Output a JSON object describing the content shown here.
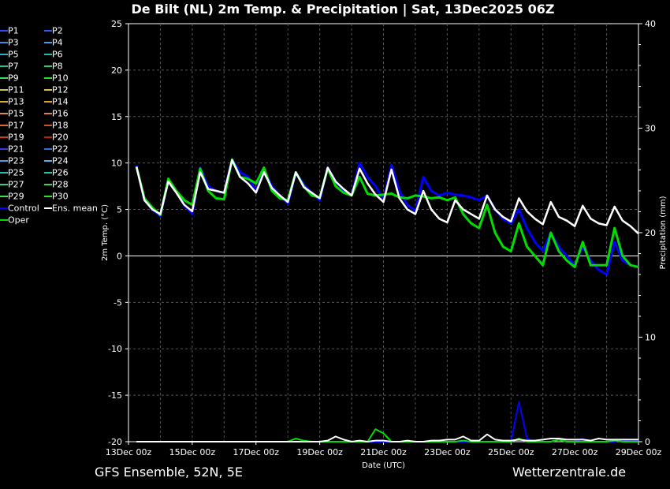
{
  "header": {
    "title": "De Bilt  (NL)  2m Temp. & Precipitation | Sat, 13Dec2025 06Z"
  },
  "footer": {
    "left": "GFS Ensemble, 52N, 5E",
    "right": "Wetterzentrale.de"
  },
  "colors": {
    "background": "#000000",
    "grid": "#555555",
    "control": "#0000ff",
    "ens_mean": "#ffffff",
    "oper": "#00dd00"
  },
  "legend": {
    "items": [
      {
        "label": "P1",
        "color": "#2a4cff"
      },
      {
        "label": "P2",
        "color": "#2a5cff"
      },
      {
        "label": "P3",
        "color": "#3f8fe0"
      },
      {
        "label": "P4",
        "color": "#3fa0e8"
      },
      {
        "label": "P5",
        "color": "#2fb0c8"
      },
      {
        "label": "P6",
        "color": "#20c0b0"
      },
      {
        "label": "P7",
        "color": "#20c890"
      },
      {
        "label": "P8",
        "color": "#30d070"
      },
      {
        "label": "P9",
        "color": "#40d850"
      },
      {
        "label": "P10",
        "color": "#20e020"
      },
      {
        "label": "P11",
        "color": "#c8c850"
      },
      {
        "label": "P12",
        "color": "#e0c020"
      },
      {
        "label": "P13",
        "color": "#d8b030"
      },
      {
        "label": "P14",
        "color": "#e0a020"
      },
      {
        "label": "P15",
        "color": "#d89048"
      },
      {
        "label": "P16",
        "color": "#e08040"
      },
      {
        "label": "P17",
        "color": "#e06830"
      },
      {
        "label": "P18",
        "color": "#d05028"
      },
      {
        "label": "P19",
        "color": "#d03820"
      },
      {
        "label": "P20",
        "color": "#c02010"
      },
      {
        "label": "P21",
        "color": "#3040e0"
      },
      {
        "label": "P22",
        "color": "#3070e0"
      },
      {
        "label": "P23",
        "color": "#40a0e0"
      },
      {
        "label": "P24",
        "color": "#50b0f0"
      },
      {
        "label": "P25",
        "color": "#30b8c0"
      },
      {
        "label": "P26",
        "color": "#20c8a8"
      },
      {
        "label": "P27",
        "color": "#30d088"
      },
      {
        "label": "P28",
        "color": "#30d868"
      },
      {
        "label": "P29",
        "color": "#40e048"
      },
      {
        "label": "P30",
        "color": "#20e820"
      },
      {
        "label": "Control",
        "color": "#0000ff"
      },
      {
        "label": "Ens. mean",
        "color": "#ffffff"
      },
      {
        "label": "Oper",
        "color": "#00dd00"
      }
    ]
  },
  "chart_data": {
    "type": "line",
    "xlabel": "Date (UTC)",
    "ylabel": "2m Temp. (°C)",
    "y2label": "Precipitation (mm)",
    "ylim": [
      -20,
      25
    ],
    "y2lim": [
      0,
      40
    ],
    "yticks": [
      "25",
      "20",
      "15",
      "10",
      "5",
      "0",
      "-5",
      "-10",
      "-15",
      "-20"
    ],
    "y2ticks": [
      "40",
      "30",
      "20",
      "10",
      "0"
    ],
    "xtick_labels": [
      "13Dec 00z",
      "15Dec 00z",
      "17Dec 00z",
      "19Dec 00z",
      "21Dec 00z",
      "23Dec 00z",
      "25Dec 00z",
      "27Dec 00z",
      "29Dec 00z"
    ],
    "grid": true,
    "zero_line": true,
    "x_unit": "hours after 13Dec2025 00z",
    "temperature": {
      "x": [
        6,
        12,
        18,
        24,
        30,
        36,
        42,
        48,
        54,
        60,
        66,
        72,
        78,
        84,
        90,
        96,
        102,
        108,
        114,
        120,
        126,
        132,
        138,
        144,
        150,
        156,
        162,
        168,
        174,
        180,
        186,
        192,
        198,
        204,
        210,
        216,
        222,
        228,
        234,
        240,
        246,
        252,
        258,
        264,
        270,
        276,
        282,
        288,
        294,
        300,
        306,
        312,
        318,
        324,
        330,
        336,
        342,
        348,
        354,
        360,
        366,
        372,
        378,
        384
      ],
      "control": [
        9.7,
        6.0,
        5.0,
        4.3,
        8.2,
        6.9,
        5.5,
        4.5,
        9.5,
        7.5,
        7.0,
        6.8,
        10.4,
        9.0,
        8.5,
        7.0,
        9.3,
        7.5,
        6.5,
        5.6,
        9.0,
        7.7,
        6.8,
        6.0,
        9.5,
        8.0,
        7.0,
        6.5,
        10.0,
        8.5,
        7.5,
        6.0,
        9.8,
        7.0,
        5.5,
        4.8,
        8.5,
        7.0,
        6.5,
        6.8,
        6.6,
        6.5,
        6.3,
        6.0,
        6.5,
        5.0,
        4.0,
        3.5,
        5.0,
        3.0,
        1.5,
        0.5,
        2.5,
        1.0,
        0.0,
        -1.0,
        1.0,
        -0.5,
        -1.5,
        -2.0,
        1.5,
        -0.5,
        -1.0,
        -1.2
      ],
      "ens_mean": [
        9.6,
        6.0,
        5.0,
        4.5,
        8.0,
        6.8,
        5.5,
        4.8,
        9.0,
        7.2,
        7.0,
        6.8,
        10.3,
        8.5,
        7.8,
        6.8,
        9.0,
        7.3,
        6.5,
        5.8,
        9.0,
        7.4,
        6.8,
        6.2,
        9.5,
        8.0,
        7.2,
        6.5,
        9.4,
        7.8,
        6.6,
        5.8,
        9.3,
        6.2,
        5.0,
        4.5,
        7.0,
        5.0,
        4.0,
        3.6,
        6.0,
        5.0,
        4.5,
        4.0,
        6.5,
        5.0,
        4.2,
        3.7,
        6.2,
        4.8,
        4.0,
        3.4,
        5.8,
        4.2,
        3.8,
        3.2,
        5.4,
        4.0,
        3.5,
        3.3,
        5.3,
        3.8,
        3.2,
        2.4
      ],
      "oper": [
        9.6,
        6.2,
        5.2,
        4.4,
        8.3,
        7.0,
        6.0,
        5.5,
        9.4,
        7.0,
        6.2,
        6.1,
        10.4,
        8.5,
        8.3,
        7.8,
        9.5,
        7.0,
        6.2,
        6.0,
        9.0,
        7.5,
        6.5,
        6.3,
        9.4,
        7.5,
        6.8,
        6.5,
        8.5,
        6.7,
        6.5,
        6.6,
        6.7,
        6.3,
        6.2,
        6.5,
        6.4,
        6.2,
        6.3,
        6.0,
        6.3,
        4.5,
        3.5,
        3.0,
        5.5,
        2.5,
        1.0,
        0.5,
        3.5,
        1.0,
        0.0,
        -1.0,
        2.5,
        0.5,
        -0.5,
        -1.2,
        1.5,
        -1.0,
        -1.0,
        -1.0,
        3.0,
        0.0,
        -1.0,
        -1.2
      ]
    },
    "precipitation": {
      "x": [
        6,
        12,
        18,
        24,
        30,
        36,
        42,
        48,
        54,
        60,
        66,
        72,
        78,
        84,
        90,
        96,
        102,
        108,
        114,
        120,
        126,
        132,
        138,
        144,
        150,
        156,
        162,
        168,
        174,
        180,
        186,
        192,
        198,
        204,
        210,
        216,
        222,
        228,
        234,
        240,
        246,
        252,
        258,
        264,
        270,
        276,
        282,
        288,
        294,
        300,
        306,
        312,
        318,
        324,
        330,
        336,
        342,
        348,
        354,
        360,
        366,
        372,
        378,
        384
      ],
      "control": [
        0,
        0,
        0,
        0,
        0,
        0,
        0,
        0,
        0,
        0,
        0,
        0,
        0,
        0,
        0,
        0,
        0,
        0,
        0,
        0,
        0,
        0,
        0,
        0,
        0,
        0,
        0,
        0,
        0,
        0,
        0,
        0,
        0,
        0,
        0,
        0,
        0,
        0,
        0,
        0,
        0,
        0,
        0,
        0,
        0,
        0,
        0,
        0,
        3.8,
        0.3,
        0,
        0,
        0,
        0.2,
        0,
        0,
        0.3,
        0,
        0,
        0,
        0,
        0.2,
        0,
        0.1
      ],
      "ens_mean": [
        0,
        0,
        0,
        0,
        0,
        0,
        0,
        0,
        0,
        0,
        0,
        0,
        0,
        0,
        0,
        0,
        0,
        0,
        0,
        0,
        0,
        0,
        0,
        0,
        0.1,
        0.5,
        0.2,
        0,
        0.1,
        0,
        0.1,
        0.1,
        0,
        0,
        0.1,
        0,
        0,
        0.1,
        0.1,
        0.2,
        0.2,
        0.5,
        0.1,
        0.1,
        0.7,
        0.2,
        0.1,
        0.1,
        0.2,
        0.1,
        0.1,
        0.2,
        0.3,
        0.3,
        0.2,
        0.2,
        0.2,
        0.1,
        0.3,
        0.2,
        0.2,
        0.2,
        0.2,
        0.2
      ],
      "oper": [
        0,
        0,
        0,
        0,
        0,
        0,
        0,
        0,
        0,
        0,
        0,
        0,
        0,
        0,
        0,
        0,
        0,
        0,
        0,
        0,
        0.3,
        0.1,
        0,
        0,
        0,
        0,
        0,
        0,
        0,
        0,
        1.2,
        0.8,
        0,
        0,
        0,
        0,
        0,
        0,
        0,
        0,
        0,
        0.1,
        0,
        0,
        0,
        0,
        0,
        0,
        0.3,
        0,
        0,
        0,
        0,
        0.2,
        0,
        0,
        0,
        0,
        0,
        0,
        0.1,
        0,
        0,
        0
      ]
    }
  }
}
